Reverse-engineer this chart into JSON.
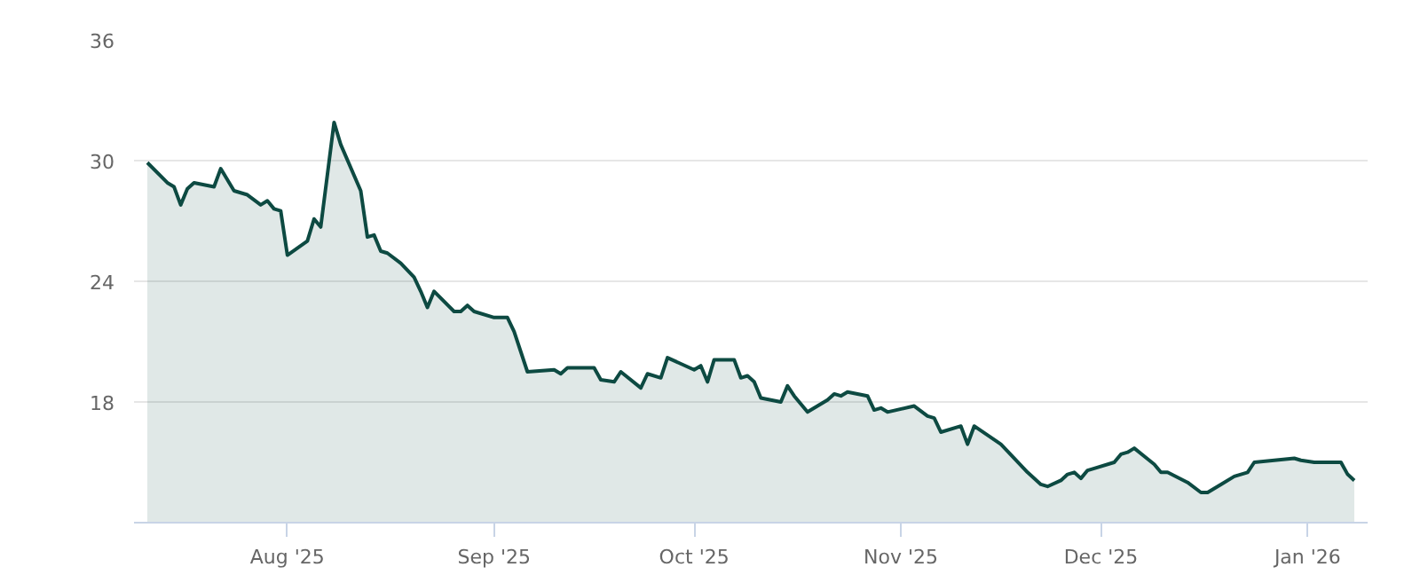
{
  "chart_data": {
    "type": "area",
    "x": [
      "2025-07-11",
      "2025-07-14",
      "2025-07-15",
      "2025-07-16",
      "2025-07-17",
      "2025-07-18",
      "2025-07-21",
      "2025-07-22",
      "2025-07-24",
      "2025-07-26",
      "2025-07-28",
      "2025-07-29",
      "2025-07-30",
      "2025-07-31",
      "2025-08-01",
      "2025-08-04",
      "2025-08-05",
      "2025-08-06",
      "2025-08-08",
      "2025-08-09",
      "2025-08-12",
      "2025-08-13",
      "2025-08-14",
      "2025-08-15",
      "2025-08-16",
      "2025-08-18",
      "2025-08-20",
      "2025-08-21",
      "2025-08-22",
      "2025-08-23",
      "2025-08-26",
      "2025-08-27",
      "2025-08-28",
      "2025-08-29",
      "2025-09-01",
      "2025-09-03",
      "2025-09-04",
      "2025-09-06",
      "2025-09-10",
      "2025-09-11",
      "2025-09-12",
      "2025-09-16",
      "2025-09-17",
      "2025-09-19",
      "2025-09-20",
      "2025-09-23",
      "2025-09-24",
      "2025-09-26",
      "2025-09-27",
      "2025-10-01",
      "2025-10-02",
      "2025-10-03",
      "2025-10-04",
      "2025-10-07",
      "2025-10-08",
      "2025-10-09",
      "2025-10-10",
      "2025-10-11",
      "2025-10-14",
      "2025-10-15",
      "2025-10-16",
      "2025-10-18",
      "2025-10-21",
      "2025-10-22",
      "2025-10-23",
      "2025-10-24",
      "2025-10-27",
      "2025-10-28",
      "2025-10-29",
      "2025-10-30",
      "2025-11-03",
      "2025-11-05",
      "2025-11-06",
      "2025-11-07",
      "2025-11-10",
      "2025-11-11",
      "2025-11-12",
      "2025-11-16",
      "2025-11-20",
      "2025-11-22",
      "2025-11-23",
      "2025-11-25",
      "2025-11-26",
      "2025-11-27",
      "2025-11-28",
      "2025-11-29",
      "2025-11-30",
      "2025-12-03",
      "2025-12-04",
      "2025-12-05",
      "2025-12-06",
      "2025-12-09",
      "2025-12-10",
      "2025-12-11",
      "2025-12-14",
      "2025-12-16",
      "2025-12-17",
      "2025-12-19",
      "2025-12-21",
      "2025-12-23",
      "2025-12-24",
      "2025-12-30",
      "2025-12-31",
      "2026-01-02",
      "2026-01-06",
      "2026-01-07",
      "2026-01-08"
    ],
    "series": [
      {
        "color": "#0d4a42",
        "values": [
          29.9,
          28.9,
          28.7,
          27.8,
          28.6,
          28.9,
          28.7,
          29.6,
          28.5,
          28.3,
          27.8,
          28.0,
          27.6,
          27.5,
          25.3,
          26.0,
          27.1,
          26.7,
          31.9,
          30.8,
          28.5,
          26.2,
          26.3,
          25.5,
          25.4,
          24.9,
          24.2,
          23.5,
          22.7,
          23.5,
          22.5,
          22.5,
          22.8,
          22.5,
          22.2,
          22.2,
          21.5,
          19.5,
          19.6,
          19.4,
          19.7,
          19.7,
          19.1,
          19.0,
          19.5,
          18.7,
          19.4,
          19.2,
          20.2,
          19.6,
          19.8,
          19.0,
          20.1,
          20.1,
          19.2,
          19.3,
          19.0,
          18.2,
          18.0,
          18.8,
          18.3,
          17.5,
          18.1,
          18.4,
          18.3,
          18.5,
          18.3,
          17.6,
          17.7,
          17.5,
          17.8,
          17.3,
          17.2,
          16.5,
          16.8,
          15.9,
          16.8,
          15.9,
          14.5,
          13.9,
          13.8,
          14.1,
          14.4,
          14.5,
          14.2,
          14.6,
          14.7,
          15.0,
          15.4,
          15.5,
          15.7,
          14.9,
          14.5,
          14.5,
          14.0,
          13.5,
          13.5,
          13.9,
          14.3,
          14.5,
          15.0,
          15.2,
          15.1,
          15.0,
          15.0,
          14.4,
          14.1
        ]
      }
    ],
    "xlim": [
      "2025-07-09",
      "2026-01-10"
    ],
    "xticks": [
      {
        "value": "2025-08-01",
        "label": "Aug '25"
      },
      {
        "value": "2025-09-01",
        "label": "Sep '25"
      },
      {
        "value": "2025-10-01",
        "label": "Oct '25"
      },
      {
        "value": "2025-11-01",
        "label": "Nov '25"
      },
      {
        "value": "2025-12-01",
        "label": "Dec '25"
      },
      {
        "value": "2026-01-01",
        "label": "Jan '26"
      }
    ],
    "ylim": [
      12,
      36
    ],
    "yticks": [
      18,
      24,
      30,
      36
    ],
    "grid": "y"
  }
}
